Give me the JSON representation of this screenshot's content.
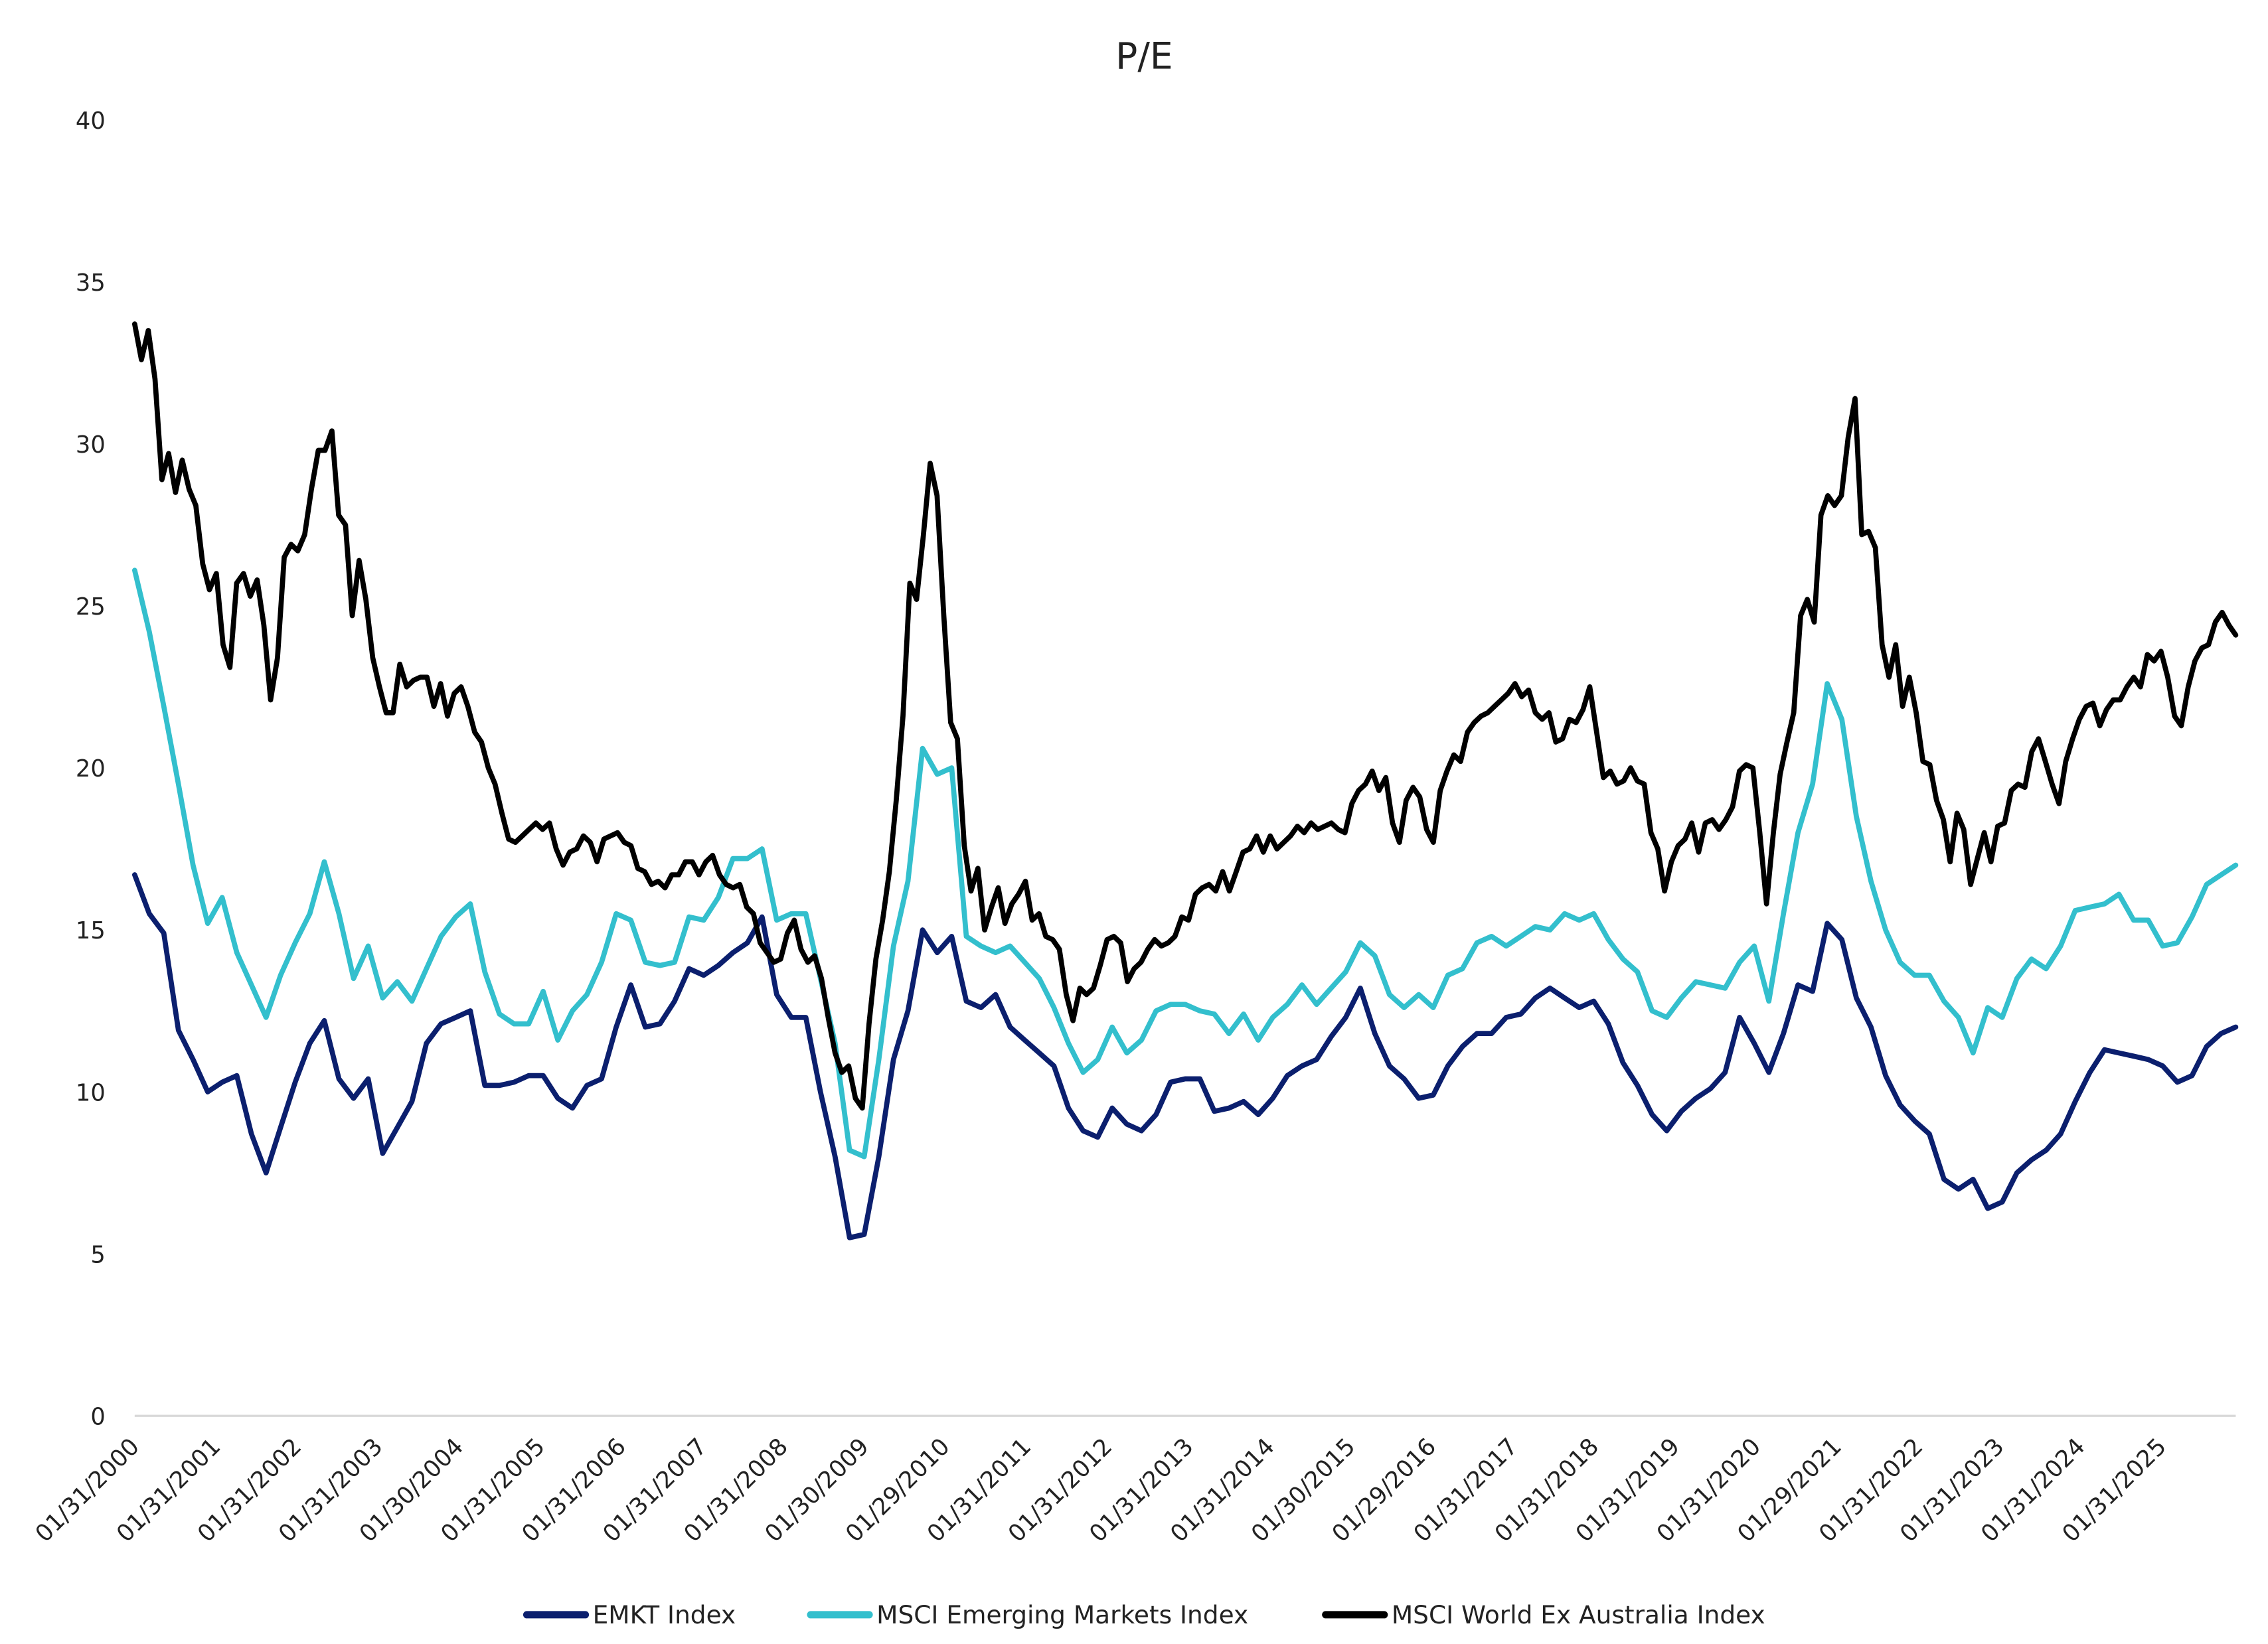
{
  "chart_data": {
    "type": "line",
    "title": "P/E",
    "xlabel": "",
    "ylabel": "",
    "x_start": "2000-01-31",
    "x_end": "2025-12-31",
    "x_note_sampling": "values evenly spaced in time from x_start to x_end",
    "ylim": [
      0,
      40
    ],
    "yticks": [
      0,
      5,
      10,
      15,
      20,
      25,
      30,
      35,
      40
    ],
    "xtick_labels": [
      "01/31/2000",
      "01/31/2001",
      "01/31/2002",
      "01/31/2003",
      "01/30/2004",
      "01/31/2005",
      "01/31/2006",
      "01/31/2007",
      "01/31/2008",
      "01/30/2009",
      "01/29/2010",
      "01/31/2011",
      "01/31/2012",
      "01/31/2013",
      "01/31/2014",
      "01/30/2015",
      "01/29/2016",
      "01/31/2017",
      "01/31/2018",
      "01/31/2019",
      "01/31/2020",
      "01/29/2021",
      "01/31/2022",
      "01/31/2023",
      "01/31/2024",
      "01/31/2025"
    ],
    "grid": false,
    "legend_position": "bottom",
    "series": [
      {
        "name": "EMKT Index",
        "color": "#0b1f6e",
        "values": [
          16.7,
          15.5,
          14.9,
          11.9,
          11.0,
          10.0,
          10.3,
          10.5,
          8.7,
          7.5,
          8.9,
          10.3,
          11.5,
          12.2,
          10.4,
          9.8,
          10.4,
          8.1,
          8.9,
          9.7,
          11.5,
          12.1,
          12.3,
          12.5,
          10.2,
          10.2,
          10.3,
          10.5,
          10.5,
          9.8,
          9.5,
          10.2,
          10.4,
          12.0,
          13.3,
          12.0,
          12.1,
          12.8,
          13.8,
          13.6,
          13.9,
          14.3,
          14.6,
          15.4,
          13.0,
          12.3,
          12.3,
          10.0,
          8.0,
          5.5,
          5.6,
          8.0,
          11.0,
          12.5,
          15.0,
          14.3,
          14.8,
          12.8,
          12.6,
          13.0,
          12.0,
          11.6,
          11.2,
          10.8,
          9.5,
          8.8,
          8.6,
          9.5,
          9.0,
          8.8,
          9.3,
          10.3,
          10.4,
          10.4,
          9.4,
          9.5,
          9.7,
          9.3,
          9.8,
          10.5,
          10.8,
          11.0,
          11.7,
          12.3,
          13.2,
          11.8,
          10.8,
          10.4,
          9.8,
          9.9,
          10.8,
          11.4,
          11.8,
          11.8,
          12.3,
          12.4,
          12.9,
          13.2,
          12.9,
          12.6,
          12.8,
          12.1,
          10.9,
          10.2,
          9.3,
          8.8,
          9.4,
          9.8,
          10.1,
          10.6,
          12.3,
          11.5,
          10.6,
          11.8,
          13.3,
          13.1,
          15.2,
          14.7,
          12.9,
          12.0,
          10.5,
          9.6,
          9.1,
          8.7,
          7.3,
          7.0,
          7.3,
          6.4,
          6.6,
          7.5,
          7.9,
          8.2,
          8.7,
          9.7,
          10.6,
          11.3,
          11.2,
          11.1,
          11.0,
          10.8,
          10.3,
          10.5,
          11.4,
          11.8,
          12.0
        ]
      },
      {
        "name": "MSCI Emerging Markets Index",
        "color": "#33bfcd",
        "values": [
          26.1,
          24.2,
          21.9,
          19.5,
          17.0,
          15.2,
          16.0,
          14.3,
          13.3,
          12.3,
          13.6,
          14.6,
          15.5,
          17.1,
          15.5,
          13.5,
          14.5,
          12.9,
          13.4,
          12.8,
          13.8,
          14.8,
          15.4,
          15.8,
          13.7,
          12.4,
          12.1,
          12.1,
          13.1,
          11.6,
          12.5,
          13.0,
          14.0,
          15.5,
          15.3,
          14.0,
          13.9,
          14.0,
          15.4,
          15.3,
          16.0,
          17.2,
          17.2,
          17.5,
          15.3,
          15.5,
          15.5,
          13.5,
          11.5,
          8.2,
          8.0,
          11.0,
          14.5,
          16.5,
          20.6,
          19.8,
          20.0,
          14.8,
          14.5,
          14.3,
          14.5,
          14.0,
          13.5,
          12.6,
          11.5,
          10.6,
          11.0,
          12.0,
          11.2,
          11.6,
          12.5,
          12.7,
          12.7,
          12.5,
          12.4,
          11.8,
          12.4,
          11.6,
          12.3,
          12.7,
          13.3,
          12.7,
          13.2,
          13.7,
          14.6,
          14.2,
          13.0,
          12.6,
          13.0,
          12.6,
          13.6,
          13.8,
          14.6,
          14.8,
          14.5,
          14.8,
          15.1,
          15.0,
          15.5,
          15.3,
          15.5,
          14.7,
          14.1,
          13.7,
          12.5,
          12.3,
          12.9,
          13.4,
          13.3,
          13.2,
          14.0,
          14.5,
          12.8,
          15.5,
          18.0,
          19.5,
          22.6,
          21.5,
          18.5,
          16.5,
          15.0,
          14.0,
          13.6,
          13.6,
          12.8,
          12.3,
          11.2,
          12.6,
          12.3,
          13.5,
          14.1,
          13.8,
          14.5,
          15.6,
          15.7,
          15.8,
          16.1,
          15.3,
          15.3,
          14.5,
          14.6,
          15.4,
          16.4,
          16.7,
          17.0
        ]
      },
      {
        "name": "MSCI World Ex Australia Index",
        "color": "#000000",
        "values": [
          33.7,
          32.6,
          33.5,
          32.0,
          28.9,
          29.7,
          28.5,
          29.5,
          28.6,
          28.1,
          26.3,
          25.5,
          26.0,
          23.8,
          23.1,
          25.7,
          26.0,
          25.3,
          25.8,
          24.4,
          22.1,
          23.4,
          26.5,
          26.9,
          26.7,
          27.2,
          28.6,
          29.8,
          29.8,
          30.4,
          27.8,
          27.5,
          24.7,
          26.4,
          25.2,
          23.4,
          22.5,
          21.7,
          21.7,
          23.2,
          22.5,
          22.7,
          22.8,
          22.8,
          21.9,
          22.6,
          21.6,
          22.3,
          22.5,
          21.9,
          21.1,
          20.8,
          20.0,
          19.5,
          18.6,
          17.8,
          17.7,
          17.9,
          18.1,
          18.3,
          18.1,
          18.3,
          17.5,
          17.0,
          17.4,
          17.5,
          17.9,
          17.7,
          17.1,
          17.8,
          17.9,
          18.0,
          17.7,
          17.6,
          16.9,
          16.8,
          16.4,
          16.5,
          16.3,
          16.7,
          16.7,
          17.1,
          17.1,
          16.7,
          17.1,
          17.3,
          16.7,
          16.4,
          16.3,
          16.4,
          15.7,
          15.5,
          14.6,
          14.3,
          14.0,
          14.1,
          14.9,
          15.3,
          14.4,
          14.0,
          14.2,
          13.5,
          12.3,
          11.2,
          10.6,
          10.8,
          9.8,
          9.5,
          12.1,
          14.1,
          15.3,
          16.8,
          19.0,
          21.6,
          25.7,
          25.2,
          27.2,
          29.4,
          28.4,
          24.7,
          21.4,
          20.9,
          17.6,
          16.2,
          16.9,
          15.0,
          15.7,
          16.3,
          15.2,
          15.8,
          16.1,
          16.5,
          15.3,
          15.5,
          14.8,
          14.7,
          14.4,
          13.0,
          12.2,
          13.2,
          13.0,
          13.2,
          13.9,
          14.7,
          14.8,
          14.6,
          13.4,
          13.8,
          14.0,
          14.4,
          14.7,
          14.5,
          14.6,
          14.8,
          15.4,
          15.3,
          16.1,
          16.3,
          16.4,
          16.2,
          16.8,
          16.2,
          16.8,
          17.4,
          17.5,
          17.9,
          17.4,
          17.9,
          17.5,
          17.7,
          17.9,
          18.2,
          18.0,
          18.3,
          18.1,
          18.2,
          18.3,
          18.1,
          18.0,
          18.9,
          19.3,
          19.5,
          19.9,
          19.3,
          19.7,
          18.3,
          17.7,
          19.0,
          19.4,
          19.1,
          18.1,
          17.7,
          19.3,
          19.9,
          20.4,
          20.2,
          21.1,
          21.4,
          21.6,
          21.7,
          21.9,
          22.1,
          22.3,
          22.6,
          22.2,
          22.4,
          21.7,
          21.5,
          21.7,
          20.8,
          20.9,
          21.5,
          21.4,
          21.8,
          22.5,
          21.1,
          19.7,
          19.9,
          19.5,
          19.6,
          20.0,
          19.6,
          19.5,
          18.0,
          17.5,
          16.2,
          17.1,
          17.6,
          17.8,
          18.3,
          17.4,
          18.3,
          18.4,
          18.1,
          18.4,
          18.8,
          19.9,
          20.1,
          20.0,
          18.0,
          15.8,
          18.0,
          19.8,
          20.8,
          21.7,
          24.7,
          25.2,
          24.5,
          27.8,
          28.4,
          28.1,
          28.4,
          30.2,
          31.4,
          27.2,
          27.3,
          26.8,
          23.8,
          22.8,
          23.8,
          21.9,
          22.8,
          21.7,
          20.2,
          20.1,
          19.0,
          18.4,
          17.1,
          18.6,
          18.1,
          16.4,
          17.2,
          18.0,
          17.1,
          18.2,
          18.3,
          19.3,
          19.5,
          19.4,
          20.5,
          20.9,
          20.2,
          19.5,
          18.9,
          20.2,
          20.9,
          21.5,
          21.9,
          22.0,
          21.3,
          21.8,
          22.1,
          22.1,
          22.5,
          22.8,
          22.5,
          23.5,
          23.3,
          23.6,
          22.8,
          21.6,
          21.3,
          22.5,
          23.3,
          23.7,
          23.8,
          24.5,
          24.8,
          24.4,
          24.1
        ]
      }
    ]
  }
}
